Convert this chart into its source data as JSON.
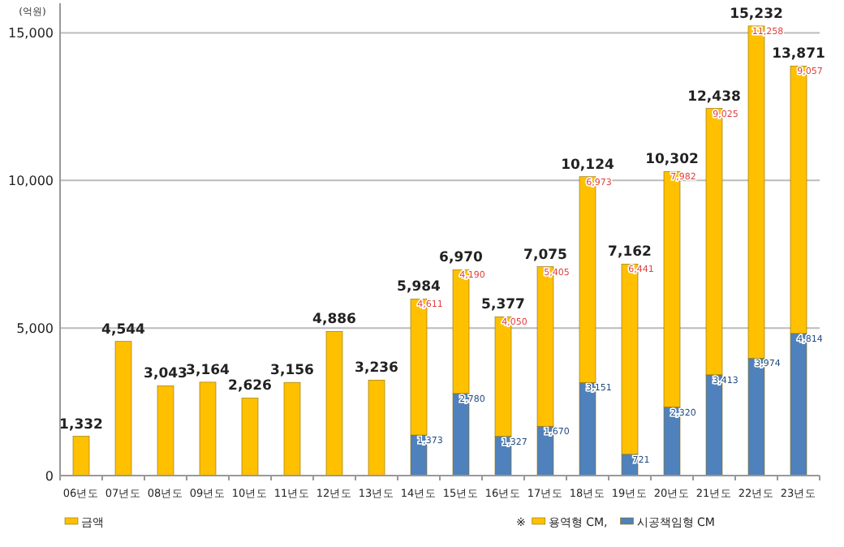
{
  "chart_data": {
    "type": "bar",
    "ylabel": "(억원)",
    "stacked": true,
    "grid": "y",
    "legend": "bottom",
    "ylim": [
      0,
      16000
    ],
    "yticks": [
      0,
      {
        "value": 5000,
        "label": "5,000"
      },
      {
        "value": 10000,
        "label": "10,000"
      },
      {
        "value": 15000,
        "label": "15,000"
      }
    ],
    "categories": [
      "06년도",
      "07년도",
      "08년도",
      "09년도",
      "10년도",
      "11년도",
      "12년도",
      "13년도",
      "14년도",
      "15년도",
      "16년도",
      "17년도",
      "18년도",
      "19년도",
      "20년도",
      "21년도",
      "22년도",
      "23년도"
    ],
    "series": [
      {
        "name": "금액",
        "color": "#ffc000",
        "values": [
          1332,
          4544,
          3043,
          3164,
          2626,
          3156,
          4886,
          3236,
          null,
          null,
          null,
          null,
          null,
          null,
          null,
          null,
          null,
          null
        ]
      },
      {
        "name": "시공책임형 CM",
        "color": "#4f81bd",
        "values": [
          null,
          null,
          null,
          null,
          null,
          null,
          null,
          null,
          1373,
          2780,
          1327,
          1670,
          3151,
          721,
          2320,
          3413,
          3974,
          4814
        ],
        "value_labels": [
          null,
          null,
          null,
          null,
          null,
          null,
          null,
          null,
          "1,373",
          "2,780",
          "1,327",
          "1,670",
          "3,151",
          "721",
          "2,320",
          "3,413",
          "3,974",
          "4,814"
        ]
      },
      {
        "name": "용역형 CM,",
        "color": "#ffc000",
        "values": [
          null,
          null,
          null,
          null,
          null,
          null,
          null,
          null,
          4611,
          4190,
          4050,
          5405,
          6973,
          6441,
          7982,
          9025,
          11258,
          9057
        ],
        "value_labels": [
          null,
          null,
          null,
          null,
          null,
          null,
          null,
          null,
          "4,611",
          "4,190",
          "4,050",
          "5,405",
          "6,973",
          "6,441",
          "7,982",
          "9,025",
          "11,258",
          "9,057"
        ]
      }
    ],
    "totals": [
      "1,332",
      "4,544",
      "3,043",
      "3,164",
      "2,626",
      "3,156",
      "4,886",
      "3,236",
      "5,984",
      "6,970",
      "5,377",
      "7,075",
      "10,124",
      "7,162",
      "10,302",
      "12,438",
      "15,232",
      "13,871"
    ],
    "annotations": [
      "※"
    ]
  }
}
